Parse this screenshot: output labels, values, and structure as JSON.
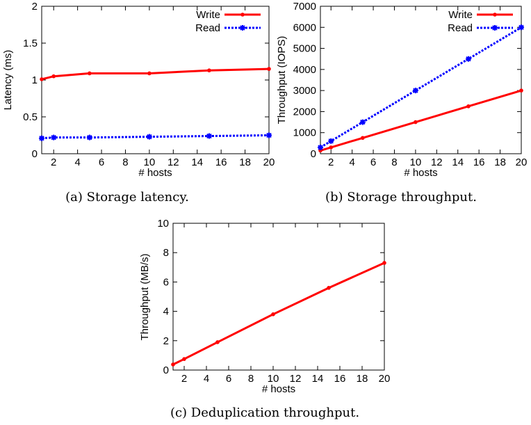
{
  "chart_data": [
    {
      "type": "line",
      "caption": "(a) Storage latency.",
      "xlabel": "# hosts",
      "ylabel": "Latency (ms)",
      "xlim": [
        1,
        20
      ],
      "ylim": [
        0,
        2
      ],
      "xticks": [
        2,
        4,
        6,
        8,
        10,
        12,
        14,
        16,
        18,
        20
      ],
      "yticks": [
        "0",
        "0.5",
        "1",
        "1.5",
        "2"
      ],
      "ytick_values": [
        0,
        0.5,
        1,
        1.5,
        2
      ],
      "legend_position": "top-right",
      "grid": false,
      "series": [
        {
          "name": "Write",
          "color": "#ff0000",
          "dash": "solid",
          "marker": "dot",
          "x": [
            1,
            2,
            5,
            10,
            15,
            20
          ],
          "y": [
            1.01,
            1.05,
            1.09,
            1.09,
            1.13,
            1.15
          ]
        },
        {
          "name": "Read",
          "color": "#0000ff",
          "dash": "dotted",
          "marker": "star",
          "x": [
            1,
            2,
            5,
            10,
            15,
            20
          ],
          "y": [
            0.21,
            0.22,
            0.22,
            0.23,
            0.24,
            0.25
          ]
        }
      ]
    },
    {
      "type": "line",
      "caption": "(b) Storage throughput.",
      "xlabel": "# hosts",
      "ylabel": "Throughput (IOPS)",
      "xlim": [
        1,
        20
      ],
      "ylim": [
        0,
        7000
      ],
      "xticks": [
        2,
        4,
        6,
        8,
        10,
        12,
        14,
        16,
        18,
        20
      ],
      "yticks": [
        "0",
        "1000",
        "2000",
        "3000",
        "4000",
        "5000",
        "6000",
        "7000"
      ],
      "ytick_values": [
        0,
        1000,
        2000,
        3000,
        4000,
        5000,
        6000,
        7000
      ],
      "legend_position": "top-right",
      "grid": false,
      "series": [
        {
          "name": "Write",
          "color": "#ff0000",
          "dash": "solid",
          "marker": "dot",
          "x": [
            1,
            2,
            5,
            10,
            15,
            20
          ],
          "y": [
            150,
            300,
            750,
            1500,
            2250,
            3000
          ]
        },
        {
          "name": "Read",
          "color": "#0000ff",
          "dash": "dotted",
          "marker": "star",
          "x": [
            1,
            2,
            5,
            10,
            15,
            20
          ],
          "y": [
            300,
            600,
            1500,
            3000,
            4500,
            6000
          ]
        }
      ]
    },
    {
      "type": "line",
      "caption": "(c) Deduplication throughput.",
      "xlabel": "# hosts",
      "ylabel": "Throughput (MB/s)",
      "xlim": [
        1,
        20
      ],
      "ylim": [
        0,
        10
      ],
      "xticks": [
        2,
        4,
        6,
        8,
        10,
        12,
        14,
        16,
        18,
        20
      ],
      "yticks": [
        "0",
        "2",
        "4",
        "6",
        "8",
        "10"
      ],
      "ytick_values": [
        0,
        2,
        4,
        6,
        8,
        10
      ],
      "legend_position": "none",
      "grid": false,
      "series": [
        {
          "color": "#ff0000",
          "dash": "solid",
          "marker": "dot",
          "x": [
            1,
            2,
            5,
            10,
            15,
            20
          ],
          "y": [
            0.38,
            0.75,
            1.9,
            3.8,
            5.6,
            7.3
          ]
        }
      ]
    }
  ]
}
